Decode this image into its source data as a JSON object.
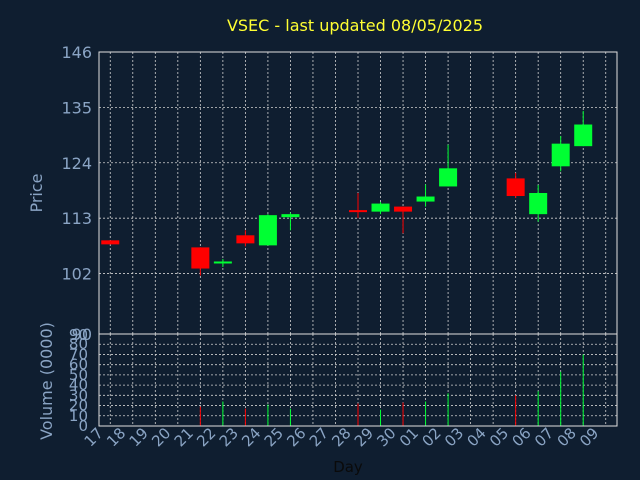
{
  "chart_data": [
    {
      "type": "candlestick",
      "title": "VSEC - last updated 08/05/2025",
      "ylabel": "Price",
      "ylim": [
        90,
        146
      ],
      "yticks": [
        90,
        102,
        113,
        124,
        135,
        146
      ],
      "grid": true,
      "colors": {
        "up": "#00ff33",
        "down": "#ff0000"
      },
      "candles": [
        {
          "day": "17",
          "open": 108.6,
          "close": 107.8,
          "high": 108.6,
          "low": 107.8
        },
        {
          "day": "21",
          "open": 107.2,
          "close": 103.0,
          "high": 107.2,
          "low": 101.6
        },
        {
          "day": "22",
          "open": 104.2,
          "close": 104.4,
          "high": 104.9,
          "low": 103.3
        },
        {
          "day": "23",
          "open": 109.6,
          "close": 108.0,
          "high": 110.6,
          "low": 107.4
        },
        {
          "day": "24",
          "open": 107.6,
          "close": 113.6,
          "high": 113.8,
          "low": 107.6
        },
        {
          "day": "25",
          "open": 113.2,
          "close": 113.8,
          "high": 114.1,
          "low": 110.6
        },
        {
          "day": "28",
          "open": 114.6,
          "close": 114.3,
          "high": 118.0,
          "low": 113.0
        },
        {
          "day": "29",
          "open": 114.3,
          "close": 115.9,
          "high": 116.2,
          "low": 113.8
        },
        {
          "day": "30",
          "open": 115.3,
          "close": 114.3,
          "high": 115.3,
          "low": 110.0
        },
        {
          "day": "01",
          "open": 116.3,
          "close": 117.3,
          "high": 119.7,
          "low": 115.3
        },
        {
          "day": "02",
          "open": 119.3,
          "close": 122.9,
          "high": 127.6,
          "low": 119.3
        },
        {
          "day": "05",
          "open": 120.9,
          "close": 117.4,
          "high": 122.0,
          "low": 117.0
        },
        {
          "day": "06",
          "open": 113.8,
          "close": 118.0,
          "high": 119.6,
          "low": 112.3
        },
        {
          "day": "07",
          "open": 123.3,
          "close": 127.8,
          "high": 129.3,
          "low": 122.3
        },
        {
          "day": "08",
          "open": 127.3,
          "close": 131.6,
          "high": 134.3,
          "low": 127.3
        }
      ]
    },
    {
      "type": "bar",
      "ylabel": "Volume (0000)",
      "xlabel": "Day",
      "ylim": [
        0,
        90
      ],
      "yticks": [
        0,
        10,
        20,
        30,
        40,
        50,
        60,
        70,
        80
      ],
      "categories": [
        "17",
        "18",
        "19",
        "20",
        "21",
        "22",
        "23",
        "24",
        "25",
        "26",
        "27",
        "28",
        "29",
        "30",
        "01",
        "02",
        "03",
        "04",
        "05",
        "06",
        "07",
        "08",
        "09"
      ],
      "bars": [
        {
          "day": "21",
          "value": 19,
          "direction": "down"
        },
        {
          "day": "22",
          "value": 24,
          "direction": "up"
        },
        {
          "day": "23",
          "value": 17,
          "direction": "down"
        },
        {
          "day": "24",
          "value": 21,
          "direction": "up"
        },
        {
          "day": "25",
          "value": 17,
          "direction": "up"
        },
        {
          "day": "28",
          "value": 22,
          "direction": "down"
        },
        {
          "day": "29",
          "value": 16,
          "direction": "up"
        },
        {
          "day": "30",
          "value": 23,
          "direction": "down"
        },
        {
          "day": "01",
          "value": 24,
          "direction": "up"
        },
        {
          "day": "02",
          "value": 32,
          "direction": "up"
        },
        {
          "day": "05",
          "value": 30,
          "direction": "down"
        },
        {
          "day": "06",
          "value": 34,
          "direction": "up"
        },
        {
          "day": "07",
          "value": 53,
          "direction": "up"
        },
        {
          "day": "08",
          "value": 70,
          "direction": "up"
        }
      ]
    }
  ]
}
